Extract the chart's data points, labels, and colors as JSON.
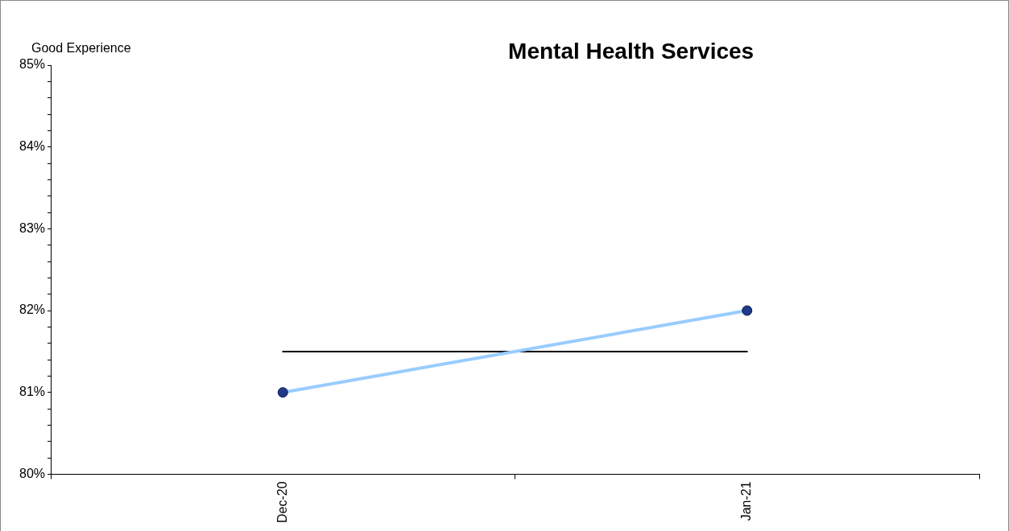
{
  "chart_data": {
    "type": "line",
    "title": "Mental Health Services",
    "ylabel": "Good Experience",
    "categories": [
      "Dec-20",
      "Jan-21"
    ],
    "series": [
      {
        "color": "#99ccff",
        "values": [
          81,
          82
        ],
        "marker": "circle"
      },
      {
        "color": "#000000",
        "values": [
          81.5,
          81.5
        ],
        "marker": "none"
      }
    ],
    "ylim": [
      80,
      85
    ],
    "yticks": [
      {
        "value": 80,
        "label": "80%"
      },
      {
        "value": 80.2,
        "label": null
      },
      {
        "value": 80.4,
        "label": null
      },
      {
        "value": 80.6,
        "label": null
      },
      {
        "value": 80.8,
        "label": null
      },
      {
        "value": 81,
        "label": "81%"
      },
      {
        "value": 81.2,
        "label": null
      },
      {
        "value": 81.4,
        "label": null
      },
      {
        "value": 81.6,
        "label": null
      },
      {
        "value": 81.8,
        "label": null
      },
      {
        "value": 82,
        "label": "82%"
      },
      {
        "value": 82.2,
        "label": null
      },
      {
        "value": 82.4,
        "label": null
      },
      {
        "value": 82.6,
        "label": null
      },
      {
        "value": 82.8,
        "label": null
      },
      {
        "value": 83,
        "label": "83%"
      },
      {
        "value": 83.2,
        "label": null
      },
      {
        "value": 83.4,
        "label": null
      },
      {
        "value": 83.6,
        "label": null
      },
      {
        "value": 83.8,
        "label": null
      },
      {
        "value": 84,
        "label": "84%"
      },
      {
        "value": 84.2,
        "label": null
      },
      {
        "value": 84.4,
        "label": null
      },
      {
        "value": 84.6,
        "label": null
      },
      {
        "value": 84.8,
        "label": null
      },
      {
        "value": 85,
        "label": "85%"
      }
    ],
    "grid": false,
    "legend": false
  }
}
